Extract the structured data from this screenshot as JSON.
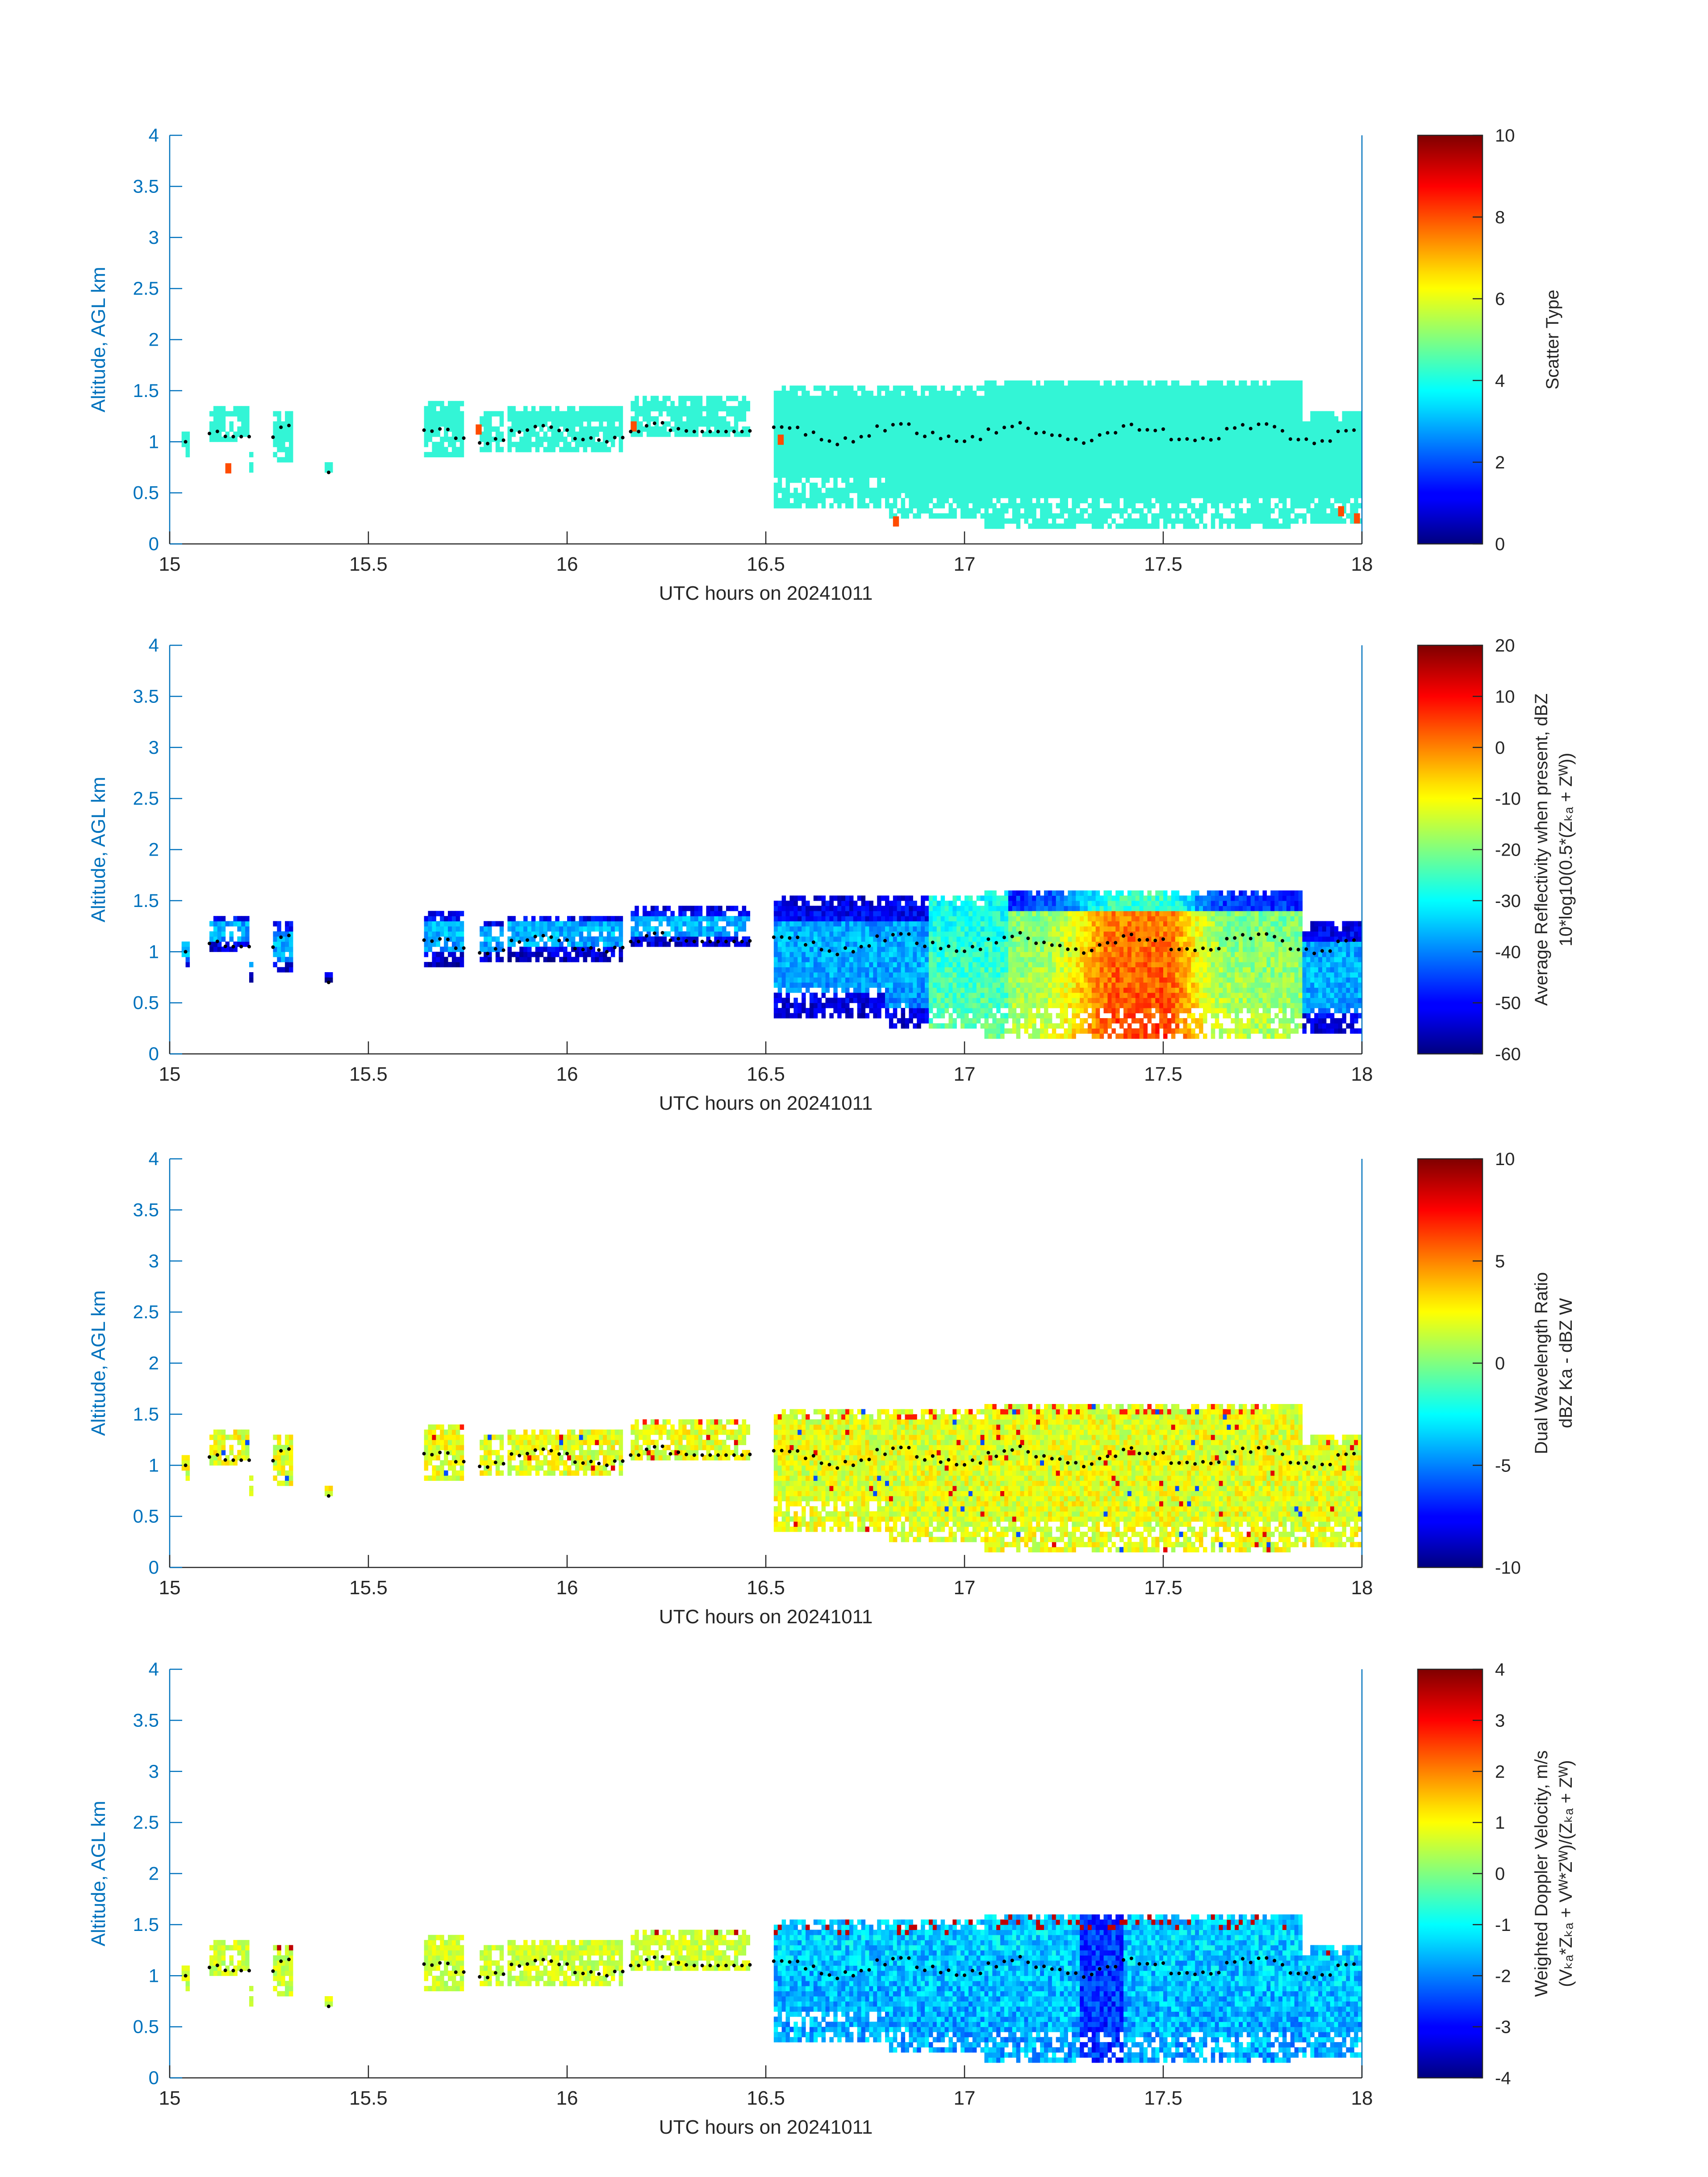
{
  "chart_data": [
    {
      "type": "heatmap",
      "title": "",
      "xlabel": "UTC hours on 20241011",
      "ylabel": "Altitude, AGL km",
      "xlim": [
        15,
        18
      ],
      "ylim": [
        0,
        4
      ],
      "xticks": [
        "15",
        "15.5",
        "16",
        "16.5",
        "17",
        "17.5",
        "18"
      ],
      "yticks": [
        "0",
        "0.5",
        "1",
        "1.5",
        "2",
        "2.5",
        "3",
        "3.5",
        "4"
      ],
      "colorbar": {
        "label_lines": [
          "Scatter Type"
        ],
        "range": [
          0,
          10
        ],
        "ticks": [
          "0",
          "2",
          "4",
          "6",
          "8",
          "10"
        ],
        "colormap": "jet"
      },
      "field": "scatter_type"
    },
    {
      "type": "heatmap",
      "title": "",
      "xlabel": "UTC hours on 20241011",
      "ylabel": "Altitude, AGL km",
      "xlim": [
        15,
        18
      ],
      "ylim": [
        0,
        4
      ],
      "xticks": [
        "15",
        "15.5",
        "16",
        "16.5",
        "17",
        "17.5",
        "18"
      ],
      "yticks": [
        "0",
        "0.5",
        "1",
        "1.5",
        "2",
        "2.5",
        "3",
        "3.5",
        "4"
      ],
      "colorbar": {
        "label_lines": [
          "Average Reflectivity when present, dBZ",
          "10*log10(0.5*(Zₖₐ + Zᵂ))"
        ],
        "range": [
          -60,
          20
        ],
        "ticks": [
          "-60",
          "-50",
          "-40",
          "-30",
          "-20",
          "-10",
          "0",
          "10",
          "20"
        ],
        "colormap": "jet"
      },
      "field": "reflectivity"
    },
    {
      "type": "heatmap",
      "title": "",
      "xlabel": "UTC hours on 20241011",
      "ylabel": "Altitude, AGL km",
      "xlim": [
        15,
        18
      ],
      "ylim": [
        0,
        4
      ],
      "xticks": [
        "15",
        "15.5",
        "16",
        "16.5",
        "17",
        "17.5",
        "18"
      ],
      "yticks": [
        "0",
        "0.5",
        "1",
        "1.5",
        "2",
        "2.5",
        "3",
        "3.5",
        "4"
      ],
      "colorbar": {
        "label_lines": [
          "Dual Wavelength Ratio",
          "dBZ Ka - dBZ W"
        ],
        "range": [
          -10,
          10
        ],
        "ticks": [
          "-10",
          "-5",
          "0",
          "5",
          "10"
        ],
        "colormap": "jet"
      },
      "field": "dwr"
    },
    {
      "type": "heatmap",
      "title": "",
      "xlabel": "UTC hours on 20241011",
      "ylabel": "Altitude, AGL km",
      "xlim": [
        15,
        18
      ],
      "ylim": [
        0,
        4
      ],
      "xticks": [
        "15",
        "15.5",
        "16",
        "16.5",
        "17",
        "17.5",
        "18"
      ],
      "yticks": [
        "0",
        "0.5",
        "1",
        "1.5",
        "2",
        "2.5",
        "3",
        "3.5",
        "4"
      ],
      "colorbar": {
        "label_lines": [
          "Weighted Doppler Velocity, m/s",
          "(Vₖₐ*Zₖₐ + Vᵂ*Zᵂ)/(Zₖₐ + Zᵂ)"
        ],
        "range": [
          -4,
          4
        ],
        "ticks": [
          "-4",
          "-3",
          "-2",
          "-1",
          "0",
          "1",
          "2",
          "3",
          "4"
        ],
        "colormap": "jet"
      },
      "field": "doppler_velocity"
    }
  ],
  "cloud_segments": [
    {
      "t0": 15.03,
      "t1": 15.05,
      "base": 0.85,
      "top": 1.12
    },
    {
      "t0": 15.1,
      "t1": 15.2,
      "base": 1.0,
      "top": 1.35
    },
    {
      "t0": 15.18,
      "t1": 15.21,
      "base": 0.75,
      "top": 0.95
    },
    {
      "t0": 15.26,
      "t1": 15.31,
      "base": 0.8,
      "top": 1.3
    },
    {
      "t0": 15.39,
      "t1": 15.41,
      "base": 0.75,
      "top": 0.82
    },
    {
      "t0": 15.64,
      "t1": 15.74,
      "base": 0.9,
      "top": 1.4
    },
    {
      "t0": 15.78,
      "t1": 15.84,
      "base": 0.92,
      "top": 1.3
    },
    {
      "t0": 15.85,
      "t1": 16.14,
      "base": 0.95,
      "top": 1.35
    },
    {
      "t0": 16.16,
      "t1": 16.46,
      "base": 1.05,
      "top": 1.42
    },
    {
      "t0": 16.52,
      "t1": 16.8,
      "base": 0.38,
      "top": 1.52
    },
    {
      "t0": 16.8,
      "t1": 17.05,
      "base": 0.25,
      "top": 1.55
    },
    {
      "t0": 17.05,
      "t1": 17.85,
      "base": 0.18,
      "top": 1.6
    },
    {
      "t0": 17.85,
      "t1": 18.0,
      "base": 0.2,
      "top": 1.3
    }
  ],
  "scatter_anomalies": [
    {
      "t": 15.14,
      "alt": 0.74,
      "value": 8
    },
    {
      "t": 15.77,
      "alt": 1.12,
      "value": 8
    },
    {
      "t": 16.16,
      "alt": 1.15,
      "value": 8
    },
    {
      "t": 16.53,
      "alt": 1.02,
      "value": 8
    },
    {
      "t": 16.82,
      "alt": 0.22,
      "value": 8
    },
    {
      "t": 17.94,
      "alt": 0.32,
      "value": 8
    },
    {
      "t": 17.98,
      "alt": 0.25,
      "value": 8
    }
  ]
}
